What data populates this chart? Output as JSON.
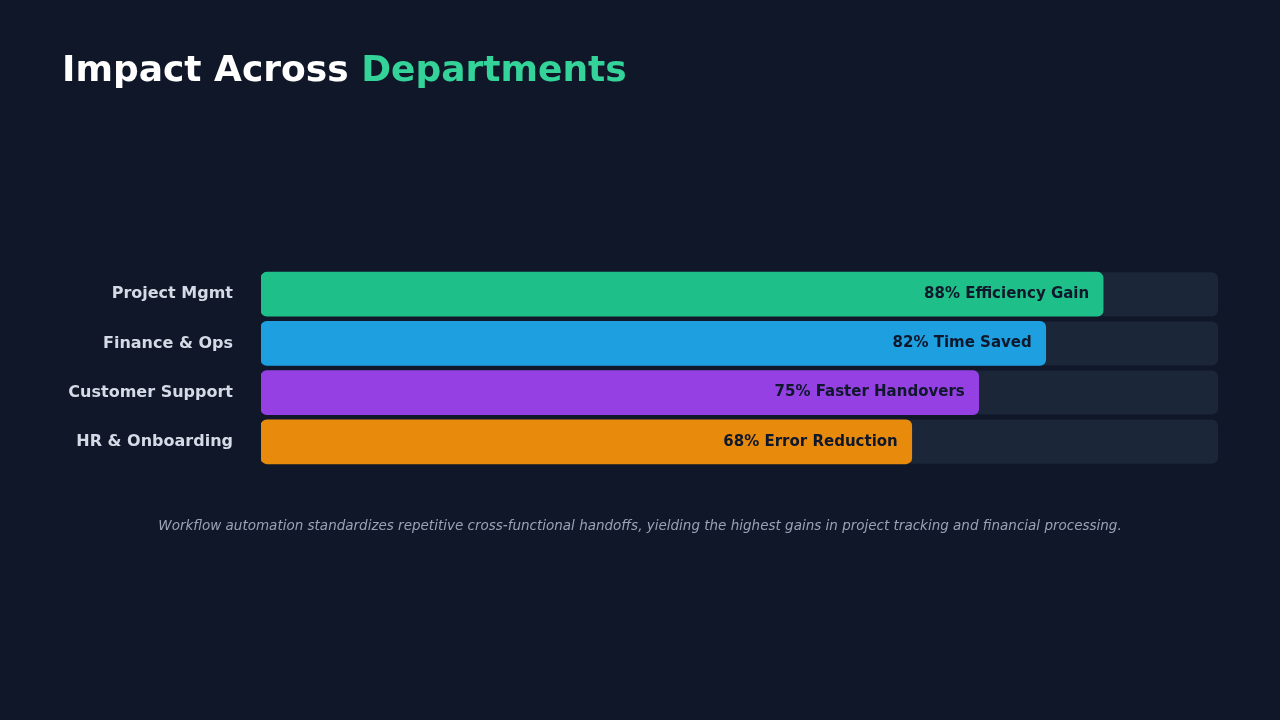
{
  "chart_data": {
    "type": "bar",
    "orientation": "horizontal",
    "title": "Impact Across Departments",
    "categories": [
      "Project Mgmt",
      "Finance & Ops",
      "Customer Support",
      "HR & Onboarding"
    ],
    "values": [
      88,
      82,
      75,
      68
    ],
    "colors": [
      "#1fbf8a",
      "#1e9fe0",
      "#9440e3",
      "#e88a0c"
    ],
    "value_labels": [
      "88% Efficiency Gain",
      "82% Time Saved",
      "75% Faster Handovers",
      "68% Error Reduction"
    ],
    "xlim": [
      0,
      100
    ],
    "tick_labels": "y",
    "grid": false,
    "annotations": [
      "Workflow automation standardizes repetitive cross-functional handoffs, yielding the highest gains in project tracking and financial processing."
    ]
  }
}
